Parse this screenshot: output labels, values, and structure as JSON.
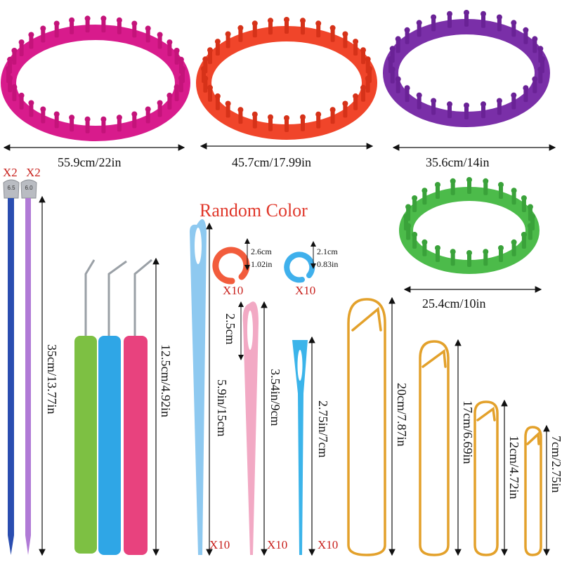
{
  "looms": [
    {
      "size_label": "55.9cm/22in",
      "color": "#d81b8c"
    },
    {
      "size_label": "45.7cm/17.99in",
      "color": "#f0452a"
    },
    {
      "size_label": "35.6cm/14in",
      "color": "#7a2fa8"
    },
    {
      "size_label": "25.4cm/10in",
      "color": "#4cbb4a"
    }
  ],
  "needles": {
    "qty_1": "X2",
    "qty_2": "X2",
    "knob_1": "6.5",
    "knob_2": "6.0",
    "length_label": "35cm/13.77in",
    "colors": [
      "#2a4db0",
      "#b07ad6"
    ]
  },
  "hooks": {
    "length_label": "12.5cm/4.92in",
    "colors": [
      "#7dc043",
      "#2fa6e6",
      "#e8427e"
    ]
  },
  "random_color_title": "Random Color",
  "stitch_markers": [
    {
      "size_cm": "2.6cm",
      "size_in": "1.02in",
      "qty": "X10",
      "color": "#f25c3c"
    },
    {
      "size_cm": "2.1cm",
      "size_in": "0.83in",
      "qty": "X10",
      "color": "#3fb0ec"
    }
  ],
  "plastic_needles": [
    {
      "length_label": "5.9in/15cm",
      "qty": "X10",
      "color": "#8ec9f0"
    },
    {
      "length_label": "3.54in/9cm",
      "eye_label": "2.5cm",
      "qty": "X10",
      "color": "#f2a9c4"
    },
    {
      "length_label": "2.75in/7cm",
      "qty": "X10",
      "color": "#3bb4ea"
    }
  ],
  "stitch_holders": [
    {
      "length_label": "20cm/7.87in"
    },
    {
      "length_label": "17cm/6.69in"
    },
    {
      "length_label": "12cm/4.72in"
    },
    {
      "length_label": "7cm/2.75in"
    }
  ],
  "holder_color": "#e3a12b"
}
